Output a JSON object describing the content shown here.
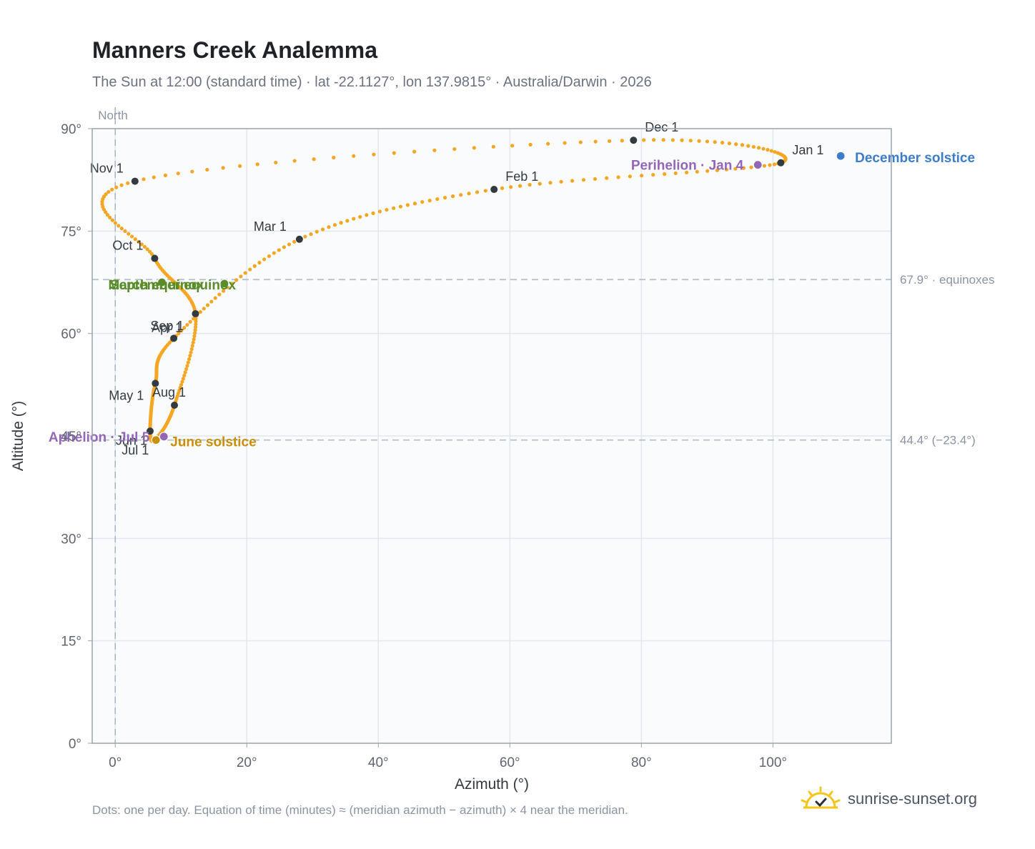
{
  "header": {
    "title": "Manners Creek Analemma",
    "subtitle": "The Sun at 12:00 (standard time) · lat -22.1127°, lon 137.9815° · Australia/Darwin · 2026"
  },
  "footer": {
    "note": "Dots: one per day. Equation of time (minutes) ≈ (meridian azimuth − azimuth) × 4 near the meridian.",
    "brand": "sunrise-sunset.org",
    "brand_icon": "sun-check-icon"
  },
  "colors": {
    "dots": "#f5a623",
    "month_marker": "#333a40",
    "equinox": "#5b8c2a",
    "june_solstice": "#c8900a",
    "december_solstice": "#3d7cc9",
    "aphelion_perihelion": "#9466b8",
    "reference_line": "#b8c2cc",
    "plot_background": "#f9fbfd",
    "axis": "#9aa3ad"
  },
  "chart_data": {
    "type": "scatter",
    "xlabel": "Azimuth (°)",
    "ylabel": "Altitude (°)",
    "xlim": [
      -3.5,
      118
    ],
    "ylim": [
      0,
      90
    ],
    "x_ticks": [
      "0°",
      "20°",
      "40°",
      "60°",
      "80°",
      "100°"
    ],
    "y_ticks": [
      "0°",
      "15°",
      "30°",
      "45°",
      "60°",
      "75°",
      "90°"
    ],
    "grid": true,
    "north_line": {
      "x": 0,
      "label": "North"
    },
    "reference_lines": [
      {
        "y": 67.9,
        "label": "67.9° · equinoxes"
      },
      {
        "y": 44.4,
        "label": "44.4° (−23.4°)"
      }
    ],
    "month_markers": [
      {
        "label": "Jan 1",
        "az": 101.2,
        "alt": 85.0
      },
      {
        "label": "Feb 1",
        "az": 57.6,
        "alt": 81.1
      },
      {
        "label": "Mar 1",
        "az": 28.0,
        "alt": 73.8
      },
      {
        "label": "Apr 1",
        "az": 8.9,
        "alt": 59.3
      },
      {
        "label": "May 1",
        "az": 6.1,
        "alt": 52.7
      },
      {
        "label": "Jun 1",
        "az": 5.3,
        "alt": 45.7
      },
      {
        "label": "Jul 1",
        "az": 6.1,
        "alt": 44.5
      },
      {
        "label": "Aug 1",
        "az": 9.0,
        "alt": 49.5
      },
      {
        "label": "Sep 1",
        "az": 12.2,
        "alt": 62.9
      },
      {
        "label": "Oct 1",
        "az": 6.0,
        "alt": 71.0
      },
      {
        "label": "Nov 1",
        "az": 3.0,
        "alt": 82.3
      },
      {
        "label": "Dec 1",
        "az": 78.8,
        "alt": 88.3
      }
    ],
    "events": [
      {
        "label": "March equinox",
        "az": 7.1,
        "alt": 67.5,
        "color_key": "equinox"
      },
      {
        "label": "September equinox",
        "az": 16.6,
        "alt": 67.3,
        "color_key": "equinox"
      },
      {
        "label": "June solstice",
        "az": 6.2,
        "alt": 44.4,
        "color_key": "june_solstice"
      },
      {
        "label": "December solstice",
        "az": 110.3,
        "alt": 86.0,
        "color_key": "december_solstice"
      },
      {
        "label": "Aphelion · Jul 5",
        "az": 7.4,
        "alt": 44.9,
        "color_key": "aphelion_perihelion"
      },
      {
        "label": "Perihelion · Jan 4",
        "az": 97.7,
        "alt": 84.7,
        "color_key": "aphelion_perihelion"
      }
    ]
  }
}
